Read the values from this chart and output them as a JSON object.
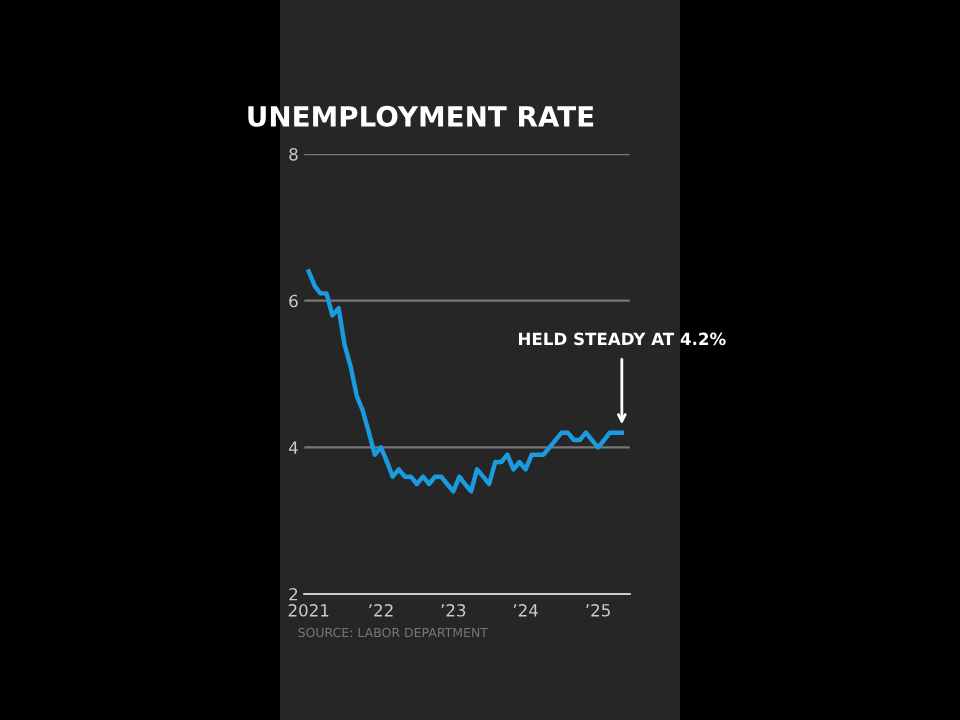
{
  "chart_data": {
    "type": "line",
    "title": "UNEMPLOYMENT RATE",
    "x": [
      "2021-01",
      "2021-02",
      "2021-03",
      "2021-04",
      "2021-05",
      "2021-06",
      "2021-07",
      "2021-08",
      "2021-09",
      "2021-10",
      "2021-11",
      "2021-12",
      "2022-01",
      "2022-02",
      "2022-03",
      "2022-04",
      "2022-05",
      "2022-06",
      "2022-07",
      "2022-08",
      "2022-09",
      "2022-10",
      "2022-11",
      "2022-12",
      "2023-01",
      "2023-02",
      "2023-03",
      "2023-04",
      "2023-05",
      "2023-06",
      "2023-07",
      "2023-08",
      "2023-09",
      "2023-10",
      "2023-11",
      "2023-12",
      "2024-01",
      "2024-02",
      "2024-03",
      "2024-04",
      "2024-05",
      "2024-06",
      "2024-07",
      "2024-08",
      "2024-09",
      "2024-10",
      "2024-11",
      "2024-12",
      "2025-01",
      "2025-02",
      "2025-03",
      "2025-04",
      "2025-05"
    ],
    "series": [
      {
        "color": "#1a9be0",
        "values": [
          6.4,
          6.2,
          6.1,
          6.1,
          5.8,
          5.9,
          5.4,
          5.1,
          4.7,
          4.5,
          4.2,
          3.9,
          4.0,
          3.8,
          3.6,
          3.7,
          3.6,
          3.6,
          3.5,
          3.6,
          3.5,
          3.6,
          3.6,
          3.5,
          3.4,
          3.6,
          3.5,
          3.4,
          3.7,
          3.6,
          3.5,
          3.8,
          3.8,
          3.9,
          3.7,
          3.8,
          3.7,
          3.9,
          3.9,
          3.9,
          4.0,
          4.1,
          4.2,
          4.2,
          4.1,
          4.1,
          4.2,
          4.1,
          4.0,
          4.1,
          4.2,
          4.2,
          4.2
        ]
      }
    ],
    "xlim": [
      "2020-12-10",
      "2025-06-10"
    ],
    "xticks": [
      {
        "value": "2021-01",
        "label": "2021"
      },
      {
        "value": "2022-01",
        "label": "’22"
      },
      {
        "value": "2023-01",
        "label": "’23"
      },
      {
        "value": "2024-01",
        "label": "’24"
      },
      {
        "value": "2025-01",
        "label": "’25"
      }
    ],
    "ylim": [
      2,
      8
    ],
    "yticks": [
      2,
      4,
      6,
      8
    ],
    "grid": "y",
    "annotations": [
      {
        "text": "HELD STEADY AT 4.2%",
        "x": "2025-05",
        "y": 4.2
      },
      "SOURCE: LABOR DEPARTMENT"
    ]
  }
}
